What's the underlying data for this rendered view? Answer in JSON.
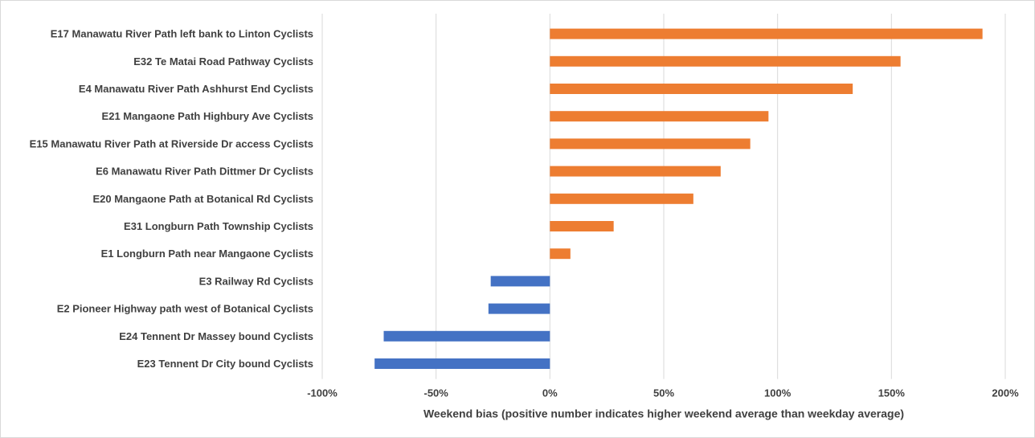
{
  "chart_data": {
    "type": "bar",
    "orientation": "horizontal",
    "title": "",
    "xlabel": "Weekend bias (positive number indicates higher weekend average than weekday average)",
    "ylabel": "",
    "xlim": [
      -1.0,
      2.0
    ],
    "grid": true,
    "legend": "none",
    "xticks": [
      {
        "value": -1.0,
        "label": "-100%"
      },
      {
        "value": -0.5,
        "label": "-50%"
      },
      {
        "value": 0.0,
        "label": "0%"
      },
      {
        "value": 0.5,
        "label": "50%"
      },
      {
        "value": 1.0,
        "label": "100%"
      },
      {
        "value": 1.5,
        "label": "150%"
      },
      {
        "value": 2.0,
        "label": "200%"
      }
    ],
    "categories": [
      "E17 Manawatu River Path left bank to Linton Cyclists",
      "E32 Te Matai Road Pathway Cyclists",
      "E4 Manawatu River Path Ashhurst End Cyclists",
      "E21 Mangaone  Path Highbury Ave  Cyclists",
      "E15 Manawatu River Path at Riverside Dr access Cyclists",
      "E6 Manawatu River Path Dittmer Dr Cyclists",
      "E20 Mangaone  Path at Botanical Rd  Cyclists",
      "E31 Longburn  Path Township Cyclists",
      "E1 Longburn Path near Mangaone  Cyclists",
      "E3 Railway Rd Cyclists",
      "E2 Pioneer Highway path west of Botanical Cyclists",
      "E24 Tennent Dr Massey bound Cyclists",
      "E23 Tennent Dr City bound Cyclists"
    ],
    "values": [
      1.9,
      1.54,
      1.33,
      0.96,
      0.88,
      0.75,
      0.63,
      0.28,
      0.09,
      -0.26,
      -0.27,
      -0.73,
      -0.77
    ],
    "colors": {
      "positive": "#ed7d31",
      "negative": "#4472c4"
    }
  }
}
